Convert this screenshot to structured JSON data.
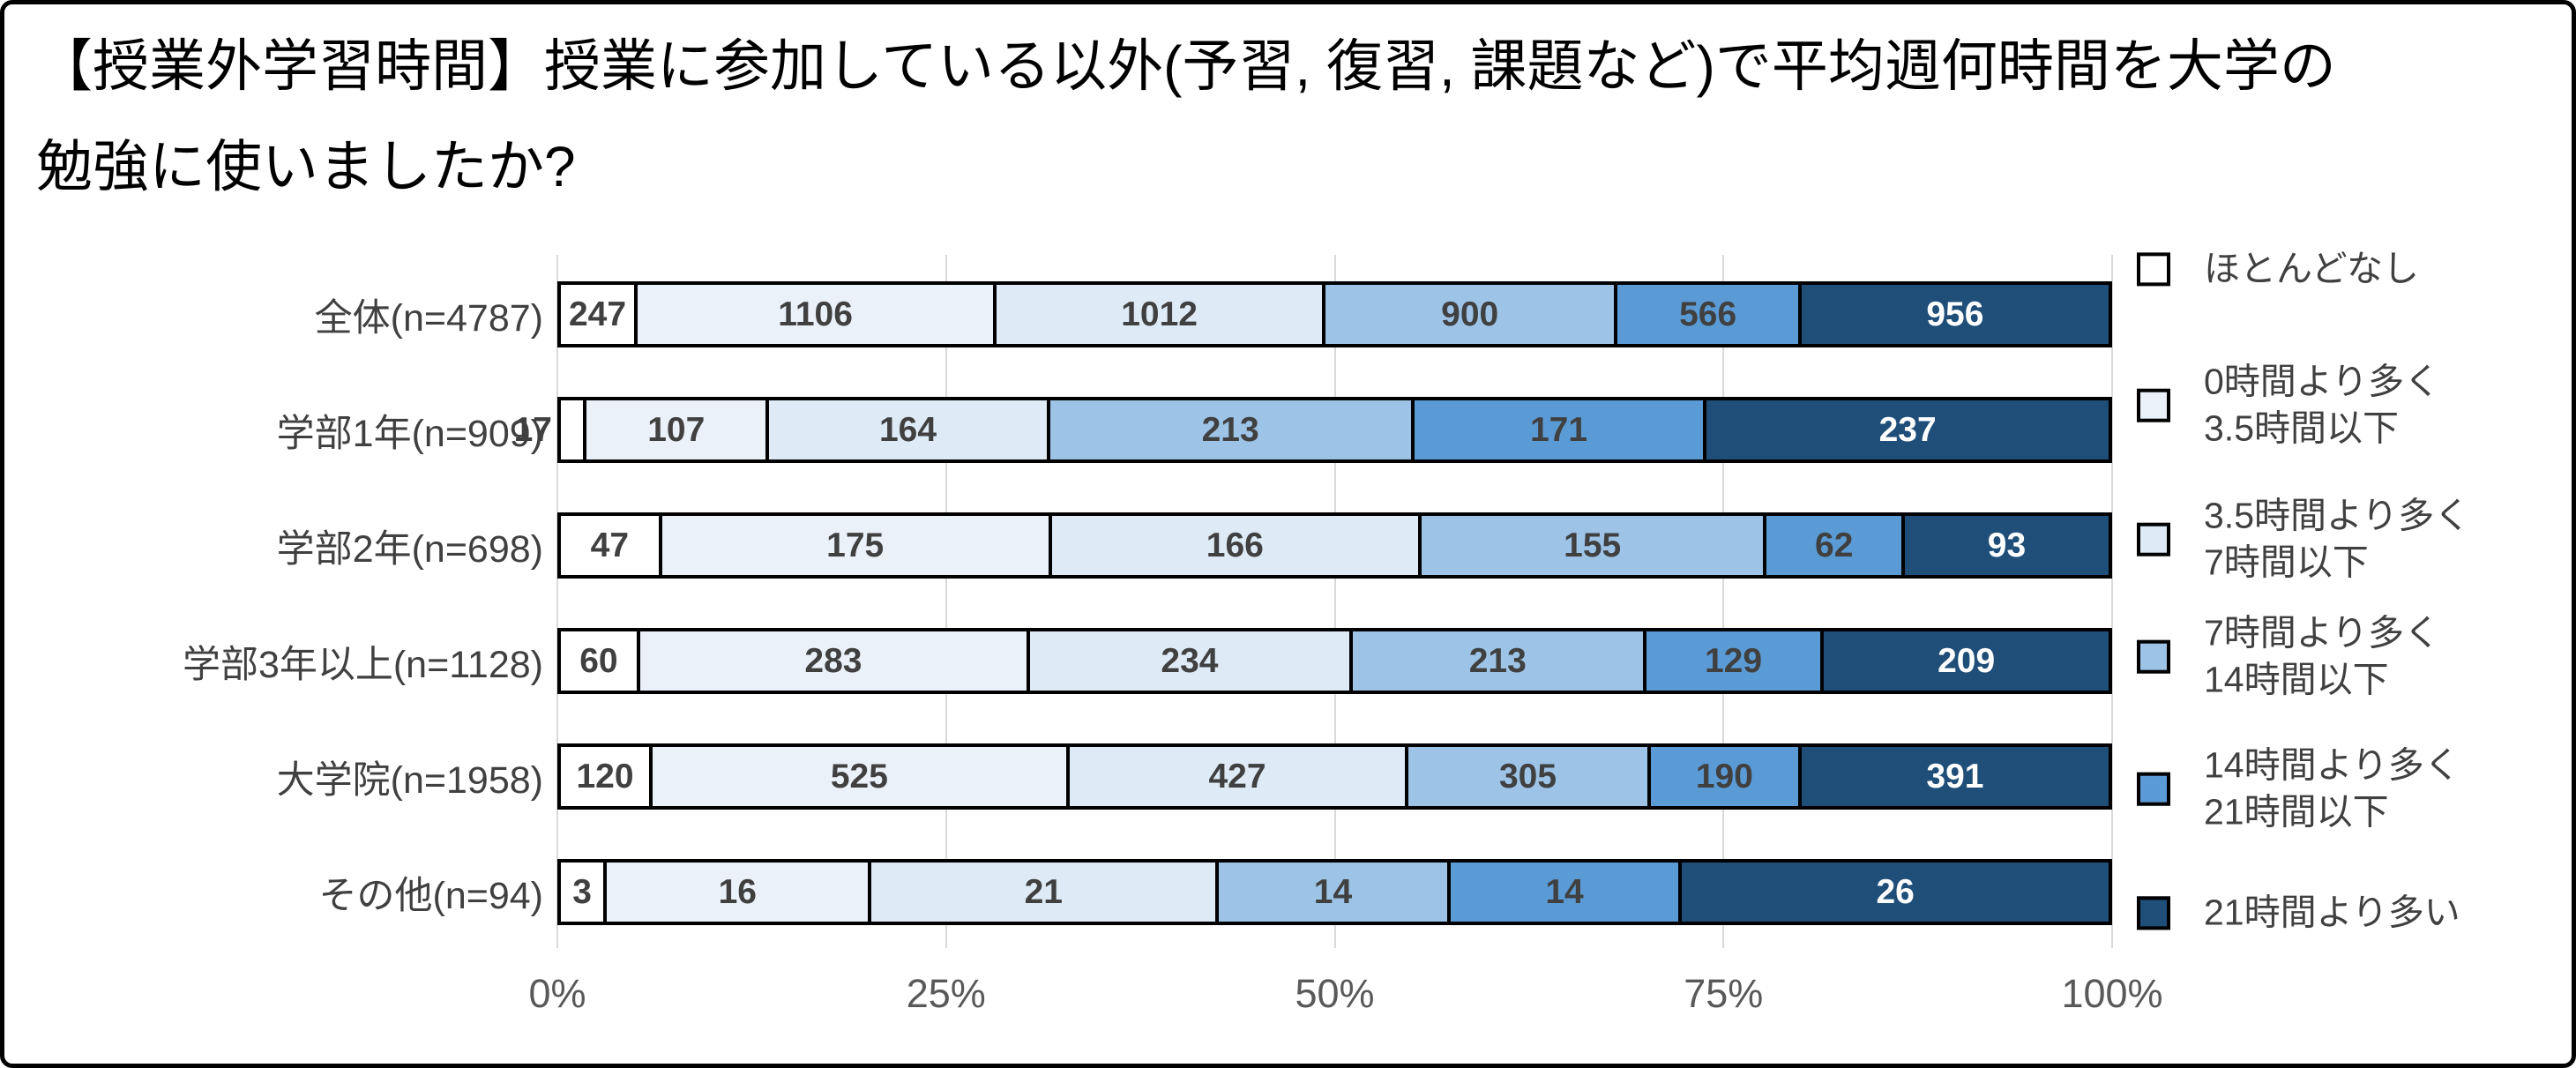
{
  "title": "【授業外学習時間】授業に参加している以外(予習, 復習, 課題など)で平均週何時間を大学の勉強に使いましたか?",
  "chart_data": {
    "type": "bar",
    "subtype": "horizontal-100pct-stacked",
    "title": "【授業外学習時間】授業に参加している以外(予習, 復習, 課題など)で平均週何時間を大学の勉強に使いましたか?",
    "categories": [
      "全体(n=4787)",
      "学部1年(n=909)",
      "学部2年(n=698)",
      "学部3年以上(n=1128)",
      "大学院(n=1958)",
      "その他(n=94)"
    ],
    "totals": [
      4787,
      909,
      698,
      1128,
      1958,
      94
    ],
    "series": [
      {
        "name": "ほとんどなし",
        "color": "#FFFFFF",
        "values": [
          247,
          17,
          47,
          60,
          120,
          3
        ]
      },
      {
        "name": "0時間より多く3.5時間以下",
        "color": "#EAF1F9",
        "values": [
          1106,
          107,
          175,
          283,
          525,
          16
        ]
      },
      {
        "name": "3.5時間より多く7時間以下",
        "color": "#DEEBF7",
        "values": [
          1012,
          164,
          166,
          234,
          427,
          21
        ]
      },
      {
        "name": "7時間より多く14時間以下",
        "color": "#9DC3E6",
        "values": [
          900,
          213,
          155,
          213,
          305,
          14
        ]
      },
      {
        "name": "14時間より多く21時間以下",
        "color": "#5B9BD5",
        "values": [
          566,
          171,
          62,
          129,
          190,
          14
        ]
      },
      {
        "name": "21時間より多い",
        "color": "#1F4E79",
        "values": [
          956,
          237,
          93,
          209,
          391,
          26
        ]
      }
    ],
    "legend": {
      "position": "right",
      "entries": [
        {
          "lines": [
            "ほとんどなし"
          ]
        },
        {
          "lines": [
            "0時間より多く",
            "3.5時間以下"
          ]
        },
        {
          "lines": [
            "3.5時間より多く",
            "7時間以下"
          ]
        },
        {
          "lines": [
            "7時間より多く",
            "14時間以下"
          ]
        },
        {
          "lines": [
            "14時間より多く",
            "21時間以下"
          ]
        },
        {
          "lines": [
            "21時間より多い"
          ]
        }
      ]
    },
    "x_axis": {
      "tick_labels": [
        "0%",
        "25%",
        "50%",
        "75%",
        "100%"
      ],
      "range_pct": [
        0,
        100
      ]
    },
    "grid": true,
    "colors": {
      "grid": "#D9D9D9",
      "bar_border": "#000000",
      "value_label": "#404040",
      "value_label_on_dark": "#FFFFFF",
      "axis_tick": "#595959",
      "category_label": "#404040"
    }
  }
}
